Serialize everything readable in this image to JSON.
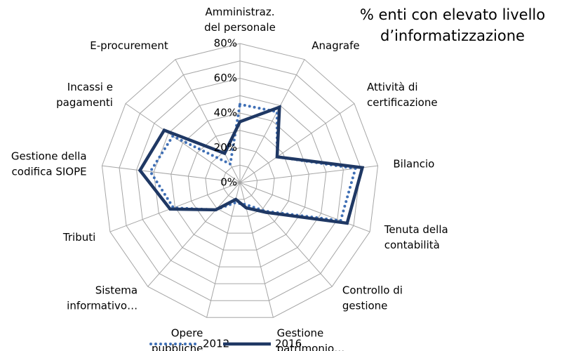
{
  "chart_data": {
    "type": "radar",
    "title": "% enti con elevato livello\nd’informatizzazione",
    "categories": [
      "Amministraz.\ndel personale",
      "Anagrafe",
      "Attività di\ncertificazione",
      "Bilancio",
      "Tenuta della\ncontabilità",
      "Controllo di\ngestione",
      "Gestione\npatrimonio…",
      "Opere\npubbliche",
      "Sistema\ninformativo…",
      "Tributi",
      "Gestione della\ncodifica SIOPE",
      "Incassi e\npagamenti",
      "E-procurement"
    ],
    "series": [
      {
        "name": "2012",
        "color": "#3f6fb5",
        "dash": "dotted",
        "values": [
          45,
          46,
          26,
          67,
          62,
          22,
          13,
          12,
          21,
          41,
          52,
          47,
          12
        ]
      },
      {
        "name": "2016",
        "color": "#1f3864",
        "dash": "solid",
        "values": [
          35,
          49,
          26,
          71,
          66,
          23,
          15,
          10,
          21,
          43,
          58,
          53,
          19
        ]
      }
    ],
    "ylim": [
      0,
      80
    ],
    "yticks": [
      {
        "value": 0,
        "label": "0%"
      },
      {
        "value": 20,
        "label": "20%"
      },
      {
        "value": 40,
        "label": "40%"
      },
      {
        "value": 60,
        "label": "60%"
      },
      {
        "value": 80,
        "label": "80%"
      }
    ],
    "yminor": [
      10,
      30,
      50,
      70
    ],
    "grid": true,
    "legend": "bottom"
  }
}
